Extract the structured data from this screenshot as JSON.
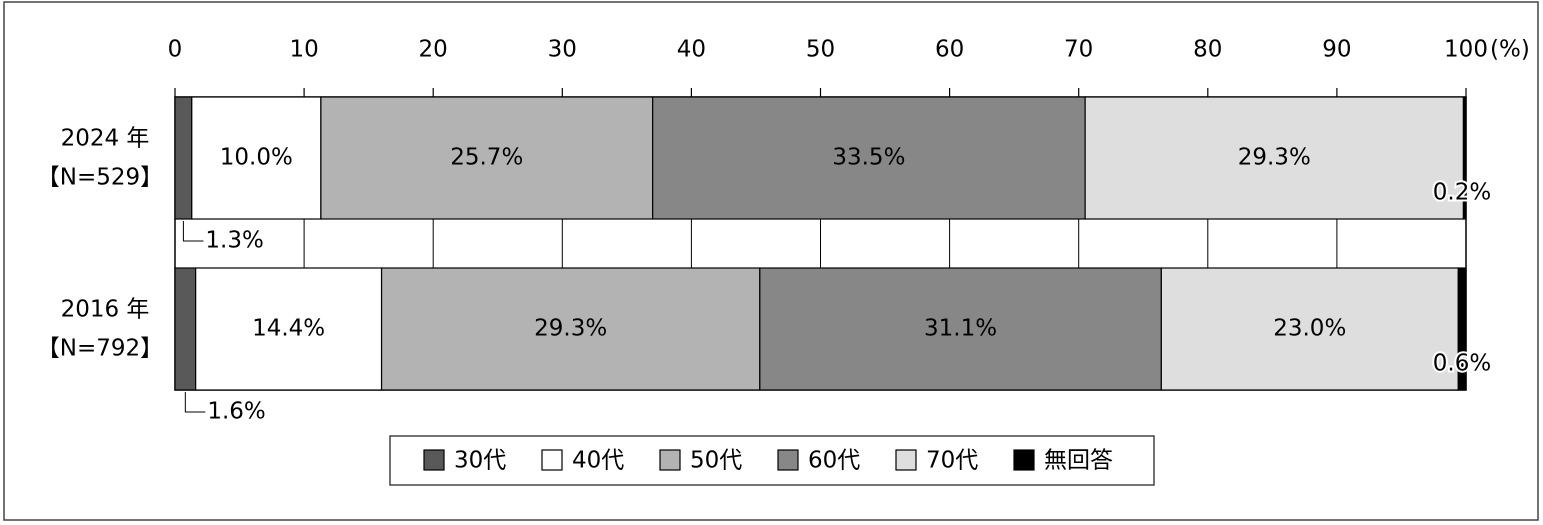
{
  "chart_data": {
    "type": "stacked_bar_horizontal",
    "categories": [
      "2024 年",
      "2016 年"
    ],
    "category_notes": [
      "【N=529】",
      "【N=792】"
    ],
    "series": [
      {
        "name": "30代",
        "color": "#595959",
        "label_color": "#000000",
        "values": [
          1.3,
          1.6
        ],
        "value_labels": [
          "1.3%",
          "1.6%"
        ]
      },
      {
        "name": "40代",
        "color": "#ffffff",
        "label_color": "#000000",
        "values": [
          10.0,
          14.4
        ],
        "value_labels": [
          "10.0%",
          "14.4%"
        ]
      },
      {
        "name": "50代",
        "color": "#b3b3b3",
        "label_color": "#000000",
        "values": [
          25.7,
          29.3
        ],
        "value_labels": [
          "25.7%",
          "29.3%"
        ]
      },
      {
        "name": "60代",
        "color": "#878787",
        "label_color": "#ffffff",
        "values": [
          33.5,
          31.1
        ],
        "value_labels": [
          "33.5%",
          "31.1%"
        ]
      },
      {
        "name": "70代",
        "color": "#dedede",
        "label_color": "#000000",
        "values": [
          29.3,
          23.0
        ],
        "value_labels": [
          "29.3%",
          "23.0%"
        ]
      },
      {
        "name": "無回答",
        "color": "#000000",
        "label_color": "#000000",
        "values": [
          0.2,
          0.6
        ],
        "value_labels": [
          "0.2%",
          "0.6%"
        ]
      }
    ],
    "xlim": [
      0,
      100
    ],
    "xticks": [
      0,
      10,
      20,
      30,
      40,
      50,
      60,
      70,
      80,
      90,
      100
    ],
    "x_unit": "(%)",
    "grid": true,
    "legend": "bottom"
  }
}
